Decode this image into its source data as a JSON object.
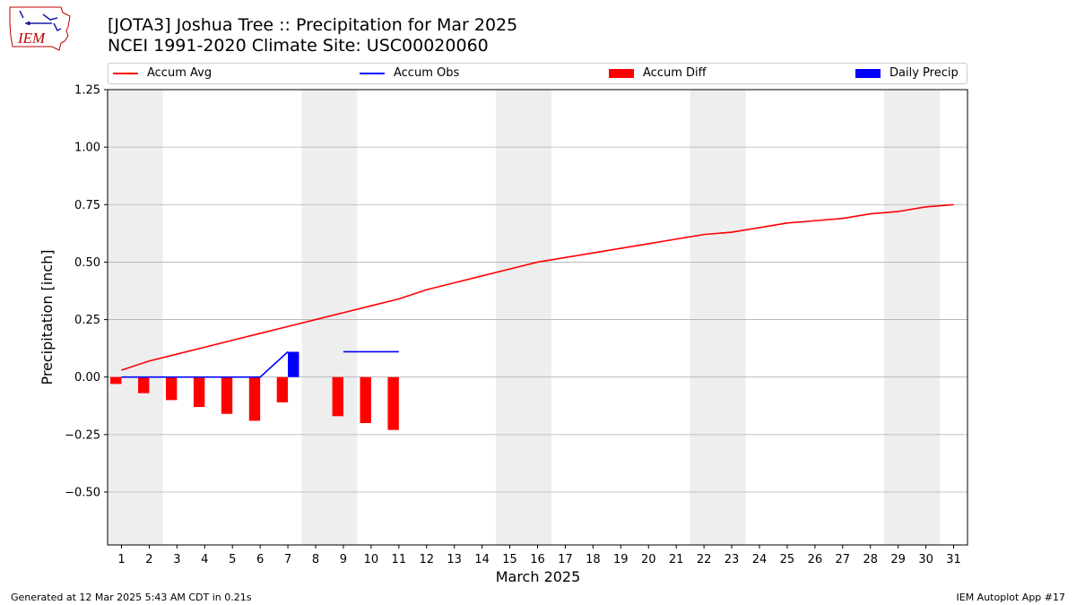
{
  "header": {
    "title_line1": "[JOTA3] Joshua Tree :: Precipitation for Mar 2025",
    "title_line2": "NCEI 1991-2020 Climate Site: USC00020060",
    "logo_text": "IEM"
  },
  "footer": {
    "left": "Generated at 12 Mar 2025 5:43 AM CDT in 0.21s",
    "right": "IEM Autoplot App #17"
  },
  "colors": {
    "avg": "#ff0000",
    "obs": "#0000ff",
    "diff": "#ff0000",
    "daily": "#0000ff",
    "weekend_shade": "#eeeeee",
    "grid": "#b0b0b0"
  },
  "chart_data": {
    "type": "bar",
    "xlabel": "March 2025",
    "ylabel": "Precipitation [inch]",
    "xlim": [
      0.5,
      31.5
    ],
    "ylim": [
      -0.73,
      1.25
    ],
    "grid": "horizontal",
    "legend_position": "top",
    "days": [
      1,
      2,
      3,
      4,
      5,
      6,
      7,
      8,
      9,
      10,
      11,
      12,
      13,
      14,
      15,
      16,
      17,
      18,
      19,
      20,
      21,
      22,
      23,
      24,
      25,
      26,
      27,
      28,
      29,
      30,
      31
    ],
    "y_ticks": [
      "1.25",
      "1.00",
      "0.75",
      "0.50",
      "0.25",
      "0.00",
      "−0.25",
      "−0.50"
    ],
    "shaded_days": [
      1,
      2,
      8,
      9,
      15,
      16,
      22,
      23,
      29,
      30
    ],
    "legend": [
      "Accum Avg",
      "Accum Obs",
      "Accum Diff",
      "Daily Precip"
    ],
    "series": [
      {
        "name": "Accum Avg",
        "kind": "line",
        "x": [
          1,
          2,
          3,
          4,
          5,
          6,
          7,
          8,
          9,
          10,
          11,
          12,
          13,
          14,
          15,
          16,
          17,
          18,
          19,
          20,
          21,
          22,
          23,
          24,
          25,
          26,
          27,
          28,
          29,
          30,
          31
        ],
        "values": [
          0.03,
          0.07,
          0.1,
          0.13,
          0.16,
          0.19,
          0.22,
          0.25,
          0.28,
          0.31,
          0.34,
          0.38,
          0.41,
          0.44,
          0.47,
          0.5,
          0.52,
          0.54,
          0.56,
          0.58,
          0.6,
          0.62,
          0.63,
          0.65,
          0.67,
          0.68,
          0.69,
          0.71,
          0.72,
          0.74,
          0.75
        ]
      },
      {
        "name": "Accum Obs",
        "kind": "line",
        "segments": [
          {
            "x": [
              1,
              2,
              3,
              4,
              5,
              6,
              7
            ],
            "values": [
              0.0,
              0.0,
              0.0,
              0.0,
              0.0,
              0.0,
              0.11
            ]
          },
          {
            "x": [
              9,
              10,
              11
            ],
            "values": [
              0.11,
              0.11,
              0.11
            ]
          }
        ]
      },
      {
        "name": "Accum Diff",
        "kind": "bar",
        "x": [
          1,
          2,
          3,
          4,
          5,
          6,
          7,
          9,
          10,
          11
        ],
        "values": [
          -0.03,
          -0.07,
          -0.1,
          -0.13,
          -0.16,
          -0.19,
          -0.11,
          -0.17,
          -0.2,
          -0.23
        ]
      },
      {
        "name": "Daily Precip",
        "kind": "bar",
        "x": [
          7
        ],
        "values": [
          0.11
        ]
      }
    ]
  }
}
